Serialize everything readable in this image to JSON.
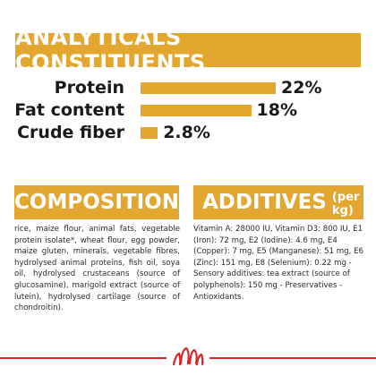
{
  "header": {
    "title": "ANALYTICALS CONSTITUENTS"
  },
  "nutrients": [
    {
      "label": "Protein",
      "value_text": "22%",
      "percent": 22
    },
    {
      "label": "Fat content",
      "value_text": "18%",
      "percent": 18
    },
    {
      "label": "Crude fiber",
      "value_text": "2.8%",
      "percent": 2.8
    }
  ],
  "composition": {
    "title": "COMPOSITION",
    "text": "rice, maize flour, animal fats, vegetable protein isolate*, wheat flour, egg powder, maize gluten, minerals, vegetable fibres, hydrolysed animal proteins, fish oil, soya oil, hydrolysed crustaceans (source of glucosamine), marigold extract (source of lutein), hydrolysed cartilage (source of chondroitin)."
  },
  "additives": {
    "title": "ADDITIVES",
    "unit": "(per kg)",
    "text": "Vitamin A: 28000 IU, Vitamin D3: 800 IU, E1 (Iron): 72 mg, E2 (Iodine): 4.6 mg, E4 (Copper): 7 mg, E5 (Manganese): 51 mg, E6 (Zinc): 151 mg, E8 (Selenium): 0.22 mg - Sensory additives: tea extract (source of polyphenols): 150 mg - Preservatives - Antioxidants."
  },
  "colors": {
    "accent": "#e3a72f",
    "brand_red": "#d8262b"
  },
  "icons": {
    "logo": "royal-canin-crown-logo"
  }
}
